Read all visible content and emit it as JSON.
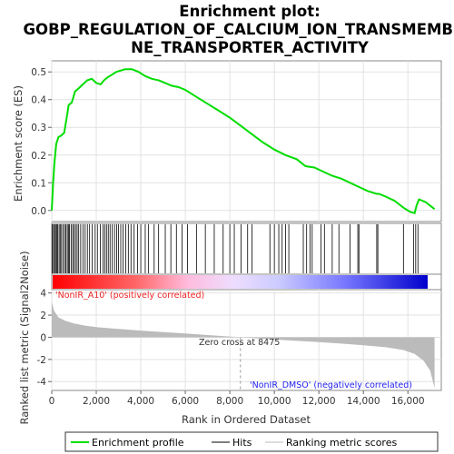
{
  "title_lines": [
    "Enrichment plot:",
    "GOBP_REGULATION_OF_CALCIUM_ION_TRANSMEMBRA",
    "NE_TRANSPORTER_ACTIVITY"
  ],
  "colors": {
    "es_line": "#00dd00",
    "hit": "#000000",
    "metric_fill": "#bbbbbb",
    "positive": "#ff0000",
    "negative": "#0000ff"
  },
  "chart_data": [
    {
      "type": "line",
      "panel": "enrichment-profile",
      "ylabel": "Enrichment score (ES)",
      "ylim": [
        -0.04,
        0.54
      ],
      "yticks": [
        0.0,
        0.1,
        0.2,
        0.3,
        0.4,
        0.5
      ],
      "ytick_labels": [
        "0.0",
        "0.1",
        "0.2",
        "0.3",
        "0.4",
        "0.5"
      ],
      "xlim": [
        0,
        17500
      ],
      "grid": true,
      "series": [
        {
          "name": "Enrichment profile",
          "x": [
            0,
            60,
            120,
            200,
            300,
            420,
            560,
            700,
            760,
            900,
            1050,
            1200,
            1400,
            1600,
            1800,
            2000,
            2200,
            2350,
            2500,
            2700,
            2900,
            3100,
            3300,
            3600,
            3900,
            4200,
            4500,
            4800,
            5100,
            5400,
            5700,
            6000,
            6500,
            7000,
            7500,
            8000,
            8500,
            9000,
            9500,
            10000,
            10500,
            11000,
            11400,
            11800,
            12200,
            12600,
            13000,
            13400,
            13800,
            14200,
            14600,
            14700,
            15000,
            15400,
            15800,
            16100,
            16300,
            16400,
            16500,
            16800,
            17200
          ],
          "y": [
            0.0,
            0.1,
            0.17,
            0.24,
            0.265,
            0.27,
            0.28,
            0.35,
            0.38,
            0.39,
            0.43,
            0.44,
            0.455,
            0.47,
            0.475,
            0.46,
            0.455,
            0.47,
            0.48,
            0.49,
            0.5,
            0.505,
            0.51,
            0.51,
            0.5,
            0.485,
            0.475,
            0.47,
            0.46,
            0.45,
            0.445,
            0.435,
            0.41,
            0.385,
            0.36,
            0.335,
            0.305,
            0.275,
            0.245,
            0.22,
            0.2,
            0.185,
            0.16,
            0.155,
            0.14,
            0.125,
            0.115,
            0.1,
            0.085,
            0.07,
            0.06,
            0.06,
            0.05,
            0.035,
            0.01,
            -0.005,
            -0.01,
            0.02,
            0.04,
            0.03,
            0.005
          ]
        }
      ]
    },
    {
      "type": "scatter",
      "panel": "hits",
      "name": "Hits",
      "x": [
        30,
        80,
        130,
        170,
        220,
        270,
        330,
        380,
        440,
        510,
        580,
        640,
        700,
        760,
        800,
        870,
        940,
        1000,
        1070,
        1140,
        1210,
        1300,
        1400,
        1500,
        1600,
        1700,
        1820,
        1950,
        2050,
        2180,
        2300,
        2380,
        2460,
        2540,
        2620,
        2720,
        2820,
        2920,
        3000,
        3100,
        3200,
        3320,
        3440,
        3560,
        3700,
        3850,
        4000,
        4200,
        4350,
        4600,
        4800,
        5100,
        5350,
        5600,
        5850,
        6100,
        6500,
        6900,
        7300,
        7700,
        8000,
        8200,
        8500,
        8800,
        9000,
        9800,
        10000,
        10200,
        10350,
        10500,
        10650,
        11300,
        11450,
        11600,
        11700,
        12100,
        12250,
        12600,
        12900,
        13400,
        13750,
        13800,
        14600,
        14650,
        15800,
        16250,
        16350,
        16450
      ]
    },
    {
      "type": "area",
      "panel": "ranked-metric",
      "ylabel": "Ranked list metric (Signal2Noise)",
      "xlabel": "Rank in Ordered Dataset",
      "ylim": [
        -4.8,
        4.3
      ],
      "yticks": [
        -4,
        -2,
        0,
        2,
        4
      ],
      "ytick_labels": [
        "-4",
        "-2",
        "0",
        "2",
        "4"
      ],
      "xlim": [
        0,
        17500
      ],
      "xticks": [
        0,
        2000,
        4000,
        6000,
        8000,
        10000,
        12000,
        14000,
        16000
      ],
      "xtick_labels": [
        "0",
        "2,000",
        "4,000",
        "6,000",
        "8,000",
        "10,000",
        "12,000",
        "14,000",
        "16,000"
      ],
      "grid": true,
      "x": [
        0,
        100,
        300,
        600,
        1000,
        1500,
        2000,
        3000,
        4000,
        5000,
        6000,
        7000,
        8000,
        8475,
        9000,
        10000,
        11000,
        12000,
        13000,
        14000,
        15000,
        15800,
        16300,
        16700,
        17000,
        17100,
        17200
      ],
      "y": [
        3.2,
        2.4,
        1.8,
        1.5,
        1.25,
        1.05,
        0.92,
        0.75,
        0.6,
        0.47,
        0.34,
        0.2,
        0.07,
        0.0,
        -0.07,
        -0.2,
        -0.32,
        -0.44,
        -0.57,
        -0.72,
        -0.9,
        -1.15,
        -1.5,
        -2.1,
        -3.0,
        -3.8,
        -4.6
      ],
      "zero_cross": 8475
    }
  ],
  "annotations": {
    "positive_label": "'NonIR_A10' (positively correlated)",
    "negative_label": "'NonIR_DMSO' (negatively correlated)",
    "zero_cross_label": "Zero cross at 8475"
  },
  "legend": [
    {
      "label": "Enrichment profile",
      "kind": "green-line"
    },
    {
      "label": "Hits",
      "kind": "black-line"
    },
    {
      "label": "Ranking metric scores",
      "kind": "gray-line"
    }
  ]
}
